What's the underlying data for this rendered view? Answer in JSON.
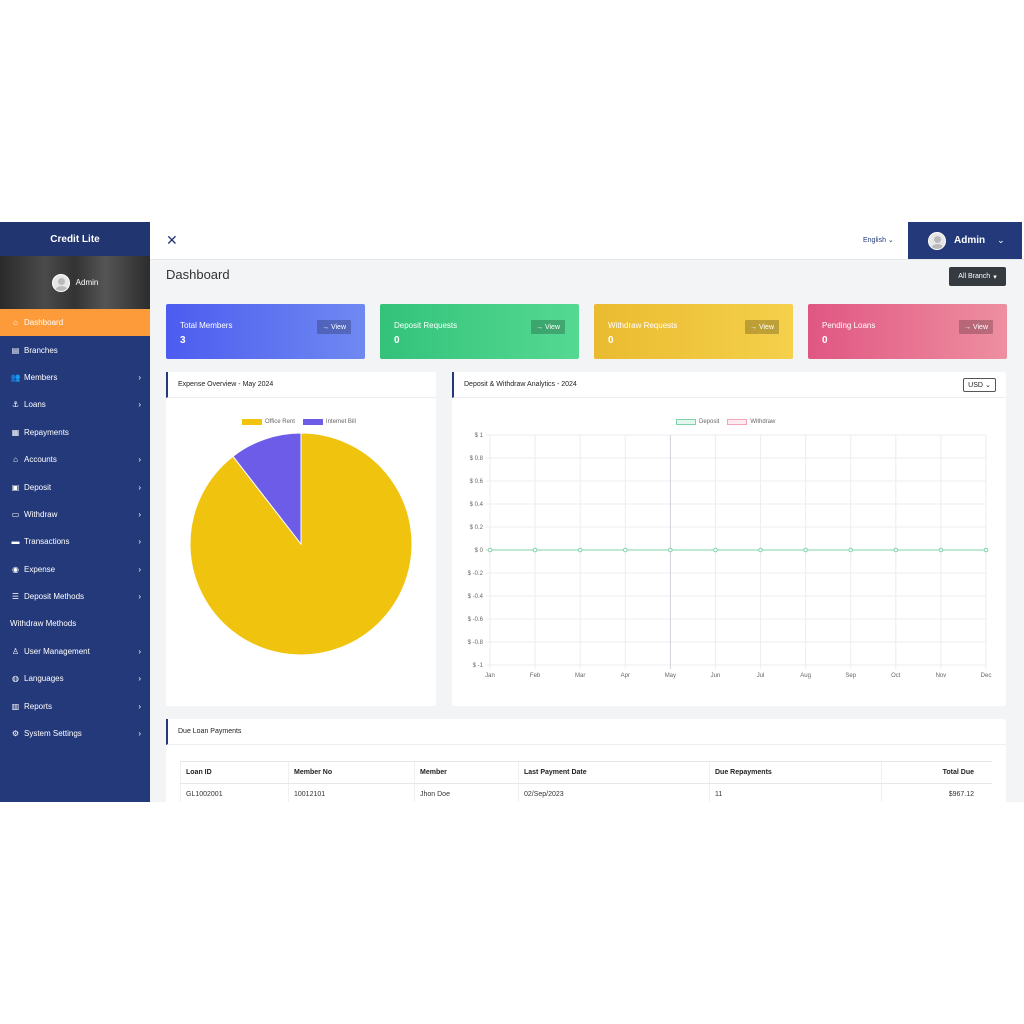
{
  "brand": "Credit Lite",
  "sidebar": {
    "user_name": "Admin",
    "items": [
      {
        "label": "Dashboard",
        "icon": "dashboard-icon",
        "glyph": "⌂",
        "has_sub": false,
        "active": true
      },
      {
        "label": "Branches",
        "icon": "building-icon",
        "glyph": "▤",
        "has_sub": false
      },
      {
        "label": "Members",
        "icon": "users-icon",
        "glyph": "👥",
        "has_sub": true
      },
      {
        "label": "Loans",
        "icon": "hand-coins-icon",
        "glyph": "⚓",
        "has_sub": true
      },
      {
        "label": "Repayments",
        "icon": "receipt-icon",
        "glyph": "▦",
        "has_sub": false
      },
      {
        "label": "Accounts",
        "icon": "bank-icon",
        "glyph": "⌂",
        "has_sub": true
      },
      {
        "label": "Deposit",
        "icon": "deposit-icon",
        "glyph": "▣",
        "has_sub": true
      },
      {
        "label": "Withdraw",
        "icon": "withdraw-icon",
        "glyph": "▭",
        "has_sub": true
      },
      {
        "label": "Transactions",
        "icon": "wallet-icon",
        "glyph": "▬",
        "has_sub": true
      },
      {
        "label": "Expense",
        "icon": "money-icon",
        "glyph": "◉",
        "has_sub": true
      },
      {
        "label": "Deposit Methods",
        "icon": "list-icon",
        "glyph": "☰",
        "has_sub": true
      },
      {
        "label": "Withdraw Methods",
        "icon": "card-icon",
        "glyph": "",
        "has_sub": false
      },
      {
        "label": "User Management",
        "icon": "user-icon",
        "glyph": "♙",
        "has_sub": true
      },
      {
        "label": "Languages",
        "icon": "globe-icon",
        "glyph": "◍",
        "has_sub": true
      },
      {
        "label": "Reports",
        "icon": "bar-chart-icon",
        "glyph": "▥",
        "has_sub": true
      },
      {
        "label": "System Settings",
        "icon": "gear-icon",
        "glyph": "⚙",
        "has_sub": true
      }
    ]
  },
  "topbar": {
    "close_glyph": "✕",
    "language": "English",
    "admin_name": "Admin"
  },
  "page": {
    "title": "Dashboard",
    "branch_button": "All Branch"
  },
  "cards": {
    "view_label": "View",
    "members": {
      "label": "Total Members",
      "value": "3"
    },
    "deposit": {
      "label": "Deposit Requests",
      "value": "0"
    },
    "withdraw": {
      "label": "Withdraw Requests",
      "value": "0"
    },
    "loans": {
      "label": "Pending Loans",
      "value": "0"
    }
  },
  "expense_panel": {
    "title": "Expense Overview - May 2024"
  },
  "analytics_panel": {
    "title": "Deposit & Withdraw Analytics - 2024",
    "currency": "USD"
  },
  "due_panel": {
    "title": "Due Loan Payments",
    "columns": [
      "Loan ID",
      "Member No",
      "Member",
      "Last Payment Date",
      "Due Repayments",
      "Total Due"
    ],
    "rows": [
      [
        "GL1002001",
        "10012101",
        "Jhon Doe",
        "02/Sep/2023",
        "11",
        "$967.12"
      ]
    ]
  },
  "colors": {
    "sidebar": "#24397a",
    "active": "#fd9b3b",
    "office_rent": "#f0c30f",
    "internet_bill": "#6c5ce7",
    "deposit_line": "#7dd3a8",
    "withdraw_line": "#f5a3b4"
  },
  "chart_data": [
    {
      "type": "pie",
      "title": "Expense Overview - May 2024",
      "labels": [
        "Office Rent",
        "Internet Bill"
      ],
      "values": [
        89.5,
        10.5
      ],
      "colors": [
        "#f0c30f",
        "#6c5ce7"
      ],
      "legend": "top"
    },
    {
      "type": "line",
      "title": "Deposit & Withdraw Analytics - 2024",
      "categories": [
        "Jan",
        "Feb",
        "Mar",
        "Apr",
        "May",
        "Jun",
        "Jul",
        "Aug",
        "Sep",
        "Oct",
        "Nov",
        "Dec"
      ],
      "series": [
        {
          "name": "Deposit",
          "values": [
            0,
            0,
            0,
            0,
            0,
            0,
            0,
            0,
            0,
            0,
            0,
            0
          ],
          "color": "#7dd3a8"
        },
        {
          "name": "Withdraw",
          "values": [
            0,
            0,
            0,
            0,
            0,
            0,
            0,
            0,
            0,
            0,
            0,
            0
          ],
          "color": "#f5a3b4"
        }
      ],
      "ylim": [
        -1,
        1
      ],
      "yticks": [
        "$ 1",
        "$ 0.8",
        "$ 0.6",
        "$ 0.4",
        "$ 0.2",
        "$ 0",
        "$ -0.2",
        "$ -0.4",
        "$ -0.6",
        "$ -0.8",
        "$ -1"
      ],
      "grid": true,
      "legend": "top"
    }
  ]
}
